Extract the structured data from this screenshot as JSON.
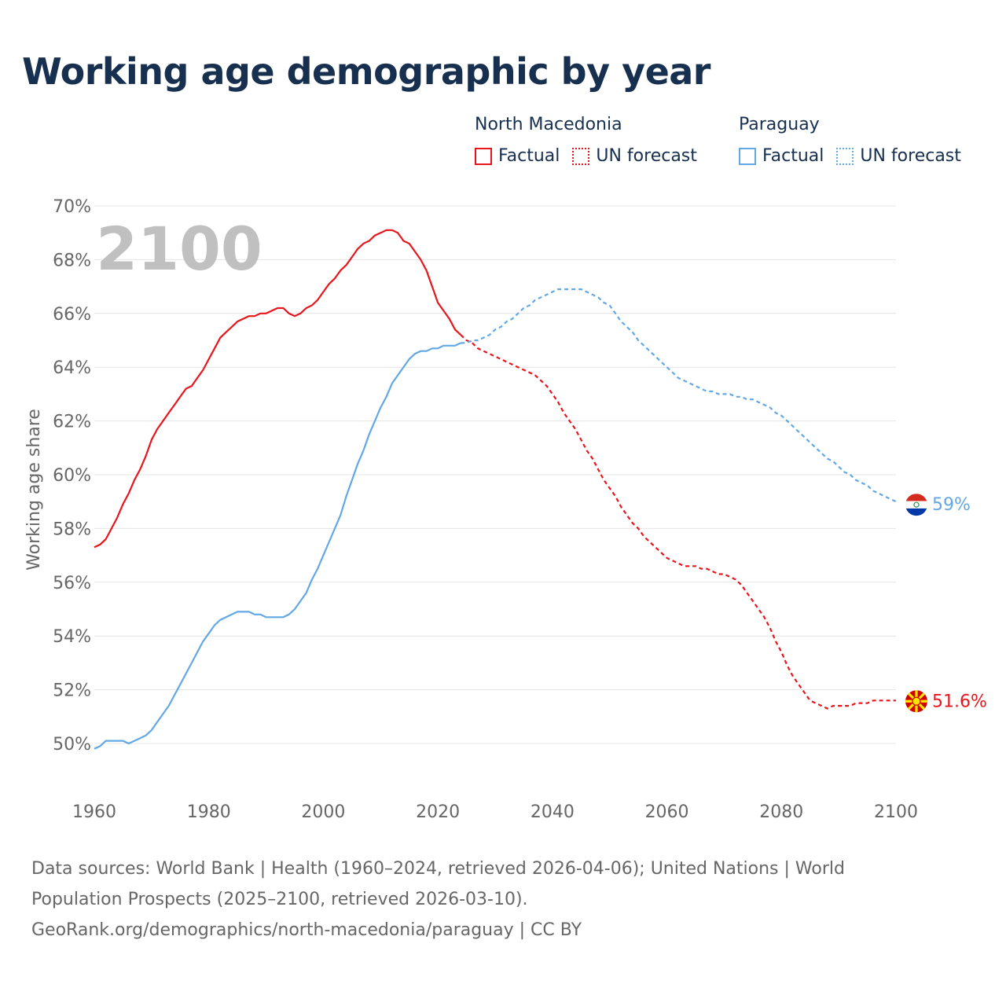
{
  "chart_data": {
    "type": "line",
    "title": "Working age demographic by year",
    "ylabel": "Working age share",
    "xlabel": "",
    "xlim": [
      1960,
      2100
    ],
    "ylim": [
      49,
      70
    ],
    "x_ticks": [
      1960,
      1980,
      2000,
      2020,
      2040,
      2060,
      2080,
      2100
    ],
    "y_ticks": [
      50,
      52,
      54,
      56,
      58,
      60,
      62,
      64,
      66,
      68,
      70
    ],
    "y_tick_labels": [
      "50%",
      "52%",
      "54%",
      "56%",
      "58%",
      "60%",
      "62%",
      "64%",
      "66%",
      "68%",
      "70%"
    ],
    "year_watermark": "2100",
    "factual_end_year": 2024,
    "legend": {
      "factual_label": "Factual",
      "forecast_label": "UN forecast"
    },
    "series": [
      {
        "name": "North Macedonia",
        "color": "#e8151c",
        "end_label": "51.6%",
        "points": [
          [
            1960,
            57.3
          ],
          [
            1961,
            57.4
          ],
          [
            1962,
            57.6
          ],
          [
            1963,
            58.0
          ],
          [
            1964,
            58.4
          ],
          [
            1965,
            58.9
          ],
          [
            1966,
            59.3
          ],
          [
            1967,
            59.8
          ],
          [
            1968,
            60.2
          ],
          [
            1969,
            60.7
          ],
          [
            1970,
            61.3
          ],
          [
            1971,
            61.7
          ],
          [
            1972,
            62.0
          ],
          [
            1973,
            62.3
          ],
          [
            1974,
            62.6
          ],
          [
            1975,
            62.9
          ],
          [
            1976,
            63.2
          ],
          [
            1977,
            63.3
          ],
          [
            1978,
            63.6
          ],
          [
            1979,
            63.9
          ],
          [
            1980,
            64.3
          ],
          [
            1981,
            64.7
          ],
          [
            1982,
            65.1
          ],
          [
            1983,
            65.3
          ],
          [
            1984,
            65.5
          ],
          [
            1985,
            65.7
          ],
          [
            1986,
            65.8
          ],
          [
            1987,
            65.9
          ],
          [
            1988,
            65.9
          ],
          [
            1989,
            66.0
          ],
          [
            1990,
            66.0
          ],
          [
            1991,
            66.1
          ],
          [
            1992,
            66.2
          ],
          [
            1993,
            66.2
          ],
          [
            1994,
            66.0
          ],
          [
            1995,
            65.9
          ],
          [
            1996,
            66.0
          ],
          [
            1997,
            66.2
          ],
          [
            1998,
            66.3
          ],
          [
            1999,
            66.5
          ],
          [
            2000,
            66.8
          ],
          [
            2001,
            67.1
          ],
          [
            2002,
            67.3
          ],
          [
            2003,
            67.6
          ],
          [
            2004,
            67.8
          ],
          [
            2005,
            68.1
          ],
          [
            2006,
            68.4
          ],
          [
            2007,
            68.6
          ],
          [
            2008,
            68.7
          ],
          [
            2009,
            68.9
          ],
          [
            2010,
            69.0
          ],
          [
            2011,
            69.1
          ],
          [
            2012,
            69.1
          ],
          [
            2013,
            69.0
          ],
          [
            2014,
            68.7
          ],
          [
            2015,
            68.6
          ],
          [
            2016,
            68.3
          ],
          [
            2017,
            68.0
          ],
          [
            2018,
            67.6
          ],
          [
            2019,
            67.0
          ],
          [
            2020,
            66.4
          ],
          [
            2021,
            66.1
          ],
          [
            2022,
            65.8
          ],
          [
            2023,
            65.4
          ],
          [
            2024,
            65.2
          ],
          [
            2025,
            65.0
          ],
          [
            2026,
            64.9
          ],
          [
            2027,
            64.7
          ],
          [
            2028,
            64.6
          ],
          [
            2029,
            64.5
          ],
          [
            2030,
            64.4
          ],
          [
            2031,
            64.3
          ],
          [
            2032,
            64.2
          ],
          [
            2033,
            64.1
          ],
          [
            2034,
            64.0
          ],
          [
            2035,
            63.9
          ],
          [
            2036,
            63.8
          ],
          [
            2037,
            63.7
          ],
          [
            2038,
            63.5
          ],
          [
            2039,
            63.3
          ],
          [
            2040,
            63.0
          ],
          [
            2041,
            62.7
          ],
          [
            2042,
            62.3
          ],
          [
            2043,
            62.0
          ],
          [
            2044,
            61.7
          ],
          [
            2045,
            61.3
          ],
          [
            2046,
            60.9
          ],
          [
            2047,
            60.6
          ],
          [
            2048,
            60.2
          ],
          [
            2049,
            59.8
          ],
          [
            2050,
            59.5
          ],
          [
            2051,
            59.2
          ],
          [
            2052,
            58.8
          ],
          [
            2053,
            58.5
          ],
          [
            2054,
            58.2
          ],
          [
            2055,
            58.0
          ],
          [
            2056,
            57.7
          ],
          [
            2057,
            57.5
          ],
          [
            2058,
            57.3
          ],
          [
            2059,
            57.1
          ],
          [
            2060,
            56.9
          ],
          [
            2061,
            56.8
          ],
          [
            2062,
            56.7
          ],
          [
            2063,
            56.6
          ],
          [
            2064,
            56.6
          ],
          [
            2065,
            56.6
          ],
          [
            2066,
            56.5
          ],
          [
            2067,
            56.5
          ],
          [
            2068,
            56.4
          ],
          [
            2069,
            56.3
          ],
          [
            2070,
            56.3
          ],
          [
            2071,
            56.2
          ],
          [
            2072,
            56.1
          ],
          [
            2073,
            55.9
          ],
          [
            2074,
            55.6
          ],
          [
            2075,
            55.3
          ],
          [
            2076,
            55.0
          ],
          [
            2077,
            54.7
          ],
          [
            2078,
            54.3
          ],
          [
            2079,
            53.8
          ],
          [
            2080,
            53.4
          ],
          [
            2081,
            52.9
          ],
          [
            2082,
            52.5
          ],
          [
            2083,
            52.2
          ],
          [
            2084,
            51.9
          ],
          [
            2085,
            51.6
          ],
          [
            2086,
            51.5
          ],
          [
            2087,
            51.4
          ],
          [
            2088,
            51.3
          ],
          [
            2089,
            51.4
          ],
          [
            2090,
            51.4
          ],
          [
            2091,
            51.4
          ],
          [
            2092,
            51.4
          ],
          [
            2093,
            51.5
          ],
          [
            2094,
            51.5
          ],
          [
            2095,
            51.5
          ],
          [
            2096,
            51.6
          ],
          [
            2097,
            51.6
          ],
          [
            2098,
            51.6
          ],
          [
            2099,
            51.6
          ],
          [
            2100,
            51.6
          ]
        ]
      },
      {
        "name": "Paraguay",
        "color": "#62a8e5",
        "end_label": "59%",
        "points": [
          [
            1960,
            49.8
          ],
          [
            1961,
            49.9
          ],
          [
            1962,
            50.1
          ],
          [
            1963,
            50.1
          ],
          [
            1964,
            50.1
          ],
          [
            1965,
            50.1
          ],
          [
            1966,
            50.0
          ],
          [
            1967,
            50.1
          ],
          [
            1968,
            50.2
          ],
          [
            1969,
            50.3
          ],
          [
            1970,
            50.5
          ],
          [
            1971,
            50.8
          ],
          [
            1972,
            51.1
          ],
          [
            1973,
            51.4
          ],
          [
            1974,
            51.8
          ],
          [
            1975,
            52.2
          ],
          [
            1976,
            52.6
          ],
          [
            1977,
            53.0
          ],
          [
            1978,
            53.4
          ],
          [
            1979,
            53.8
          ],
          [
            1980,
            54.1
          ],
          [
            1981,
            54.4
          ],
          [
            1982,
            54.6
          ],
          [
            1983,
            54.7
          ],
          [
            1984,
            54.8
          ],
          [
            1985,
            54.9
          ],
          [
            1986,
            54.9
          ],
          [
            1987,
            54.9
          ],
          [
            1988,
            54.8
          ],
          [
            1989,
            54.8
          ],
          [
            1990,
            54.7
          ],
          [
            1991,
            54.7
          ],
          [
            1992,
            54.7
          ],
          [
            1993,
            54.7
          ],
          [
            1994,
            54.8
          ],
          [
            1995,
            55.0
          ],
          [
            1996,
            55.3
          ],
          [
            1997,
            55.6
          ],
          [
            1998,
            56.1
          ],
          [
            1999,
            56.5
          ],
          [
            2000,
            57.0
          ],
          [
            2001,
            57.5
          ],
          [
            2002,
            58.0
          ],
          [
            2003,
            58.5
          ],
          [
            2004,
            59.2
          ],
          [
            2005,
            59.8
          ],
          [
            2006,
            60.4
          ],
          [
            2007,
            60.9
          ],
          [
            2008,
            61.5
          ],
          [
            2009,
            62.0
          ],
          [
            2010,
            62.5
          ],
          [
            2011,
            62.9
          ],
          [
            2012,
            63.4
          ],
          [
            2013,
            63.7
          ],
          [
            2014,
            64.0
          ],
          [
            2015,
            64.3
          ],
          [
            2016,
            64.5
          ],
          [
            2017,
            64.6
          ],
          [
            2018,
            64.6
          ],
          [
            2019,
            64.7
          ],
          [
            2020,
            64.7
          ],
          [
            2021,
            64.8
          ],
          [
            2022,
            64.8
          ],
          [
            2023,
            64.8
          ],
          [
            2024,
            64.9
          ],
          [
            2025,
            64.9
          ],
          [
            2026,
            65.0
          ],
          [
            2027,
            65.0
          ],
          [
            2028,
            65.1
          ],
          [
            2029,
            65.2
          ],
          [
            2030,
            65.4
          ],
          [
            2031,
            65.5
          ],
          [
            2032,
            65.7
          ],
          [
            2033,
            65.8
          ],
          [
            2034,
            66.0
          ],
          [
            2035,
            66.2
          ],
          [
            2036,
            66.3
          ],
          [
            2037,
            66.5
          ],
          [
            2038,
            66.6
          ],
          [
            2039,
            66.7
          ],
          [
            2040,
            66.8
          ],
          [
            2041,
            66.9
          ],
          [
            2042,
            66.9
          ],
          [
            2043,
            66.9
          ],
          [
            2044,
            66.9
          ],
          [
            2045,
            66.9
          ],
          [
            2046,
            66.8
          ],
          [
            2047,
            66.7
          ],
          [
            2048,
            66.6
          ],
          [
            2049,
            66.4
          ],
          [
            2050,
            66.3
          ],
          [
            2051,
            66.0
          ],
          [
            2052,
            65.7
          ],
          [
            2053,
            65.5
          ],
          [
            2054,
            65.3
          ],
          [
            2055,
            65.0
          ],
          [
            2056,
            64.8
          ],
          [
            2057,
            64.6
          ],
          [
            2058,
            64.4
          ],
          [
            2059,
            64.2
          ],
          [
            2060,
            64.0
          ],
          [
            2061,
            63.8
          ],
          [
            2062,
            63.6
          ],
          [
            2063,
            63.5
          ],
          [
            2064,
            63.4
          ],
          [
            2065,
            63.3
          ],
          [
            2066,
            63.2
          ],
          [
            2067,
            63.1
          ],
          [
            2068,
            63.1
          ],
          [
            2069,
            63.0
          ],
          [
            2070,
            63.0
          ],
          [
            2071,
            63.0
          ],
          [
            2072,
            62.9
          ],
          [
            2073,
            62.9
          ],
          [
            2074,
            62.8
          ],
          [
            2075,
            62.8
          ],
          [
            2076,
            62.7
          ],
          [
            2077,
            62.6
          ],
          [
            2078,
            62.5
          ],
          [
            2079,
            62.3
          ],
          [
            2080,
            62.2
          ],
          [
            2081,
            62.0
          ],
          [
            2082,
            61.8
          ],
          [
            2083,
            61.6
          ],
          [
            2084,
            61.4
          ],
          [
            2085,
            61.2
          ],
          [
            2086,
            61.0
          ],
          [
            2087,
            60.8
          ],
          [
            2088,
            60.6
          ],
          [
            2089,
            60.5
          ],
          [
            2090,
            60.3
          ],
          [
            2091,
            60.1
          ],
          [
            2092,
            60.0
          ],
          [
            2093,
            59.8
          ],
          [
            2094,
            59.7
          ],
          [
            2095,
            59.6
          ],
          [
            2096,
            59.4
          ],
          [
            2097,
            59.3
          ],
          [
            2098,
            59.2
          ],
          [
            2099,
            59.1
          ],
          [
            2100,
            59.0
          ]
        ]
      }
    ],
    "source_lines": [
      "Data sources: World Bank | Health (1960–2024, retrieved 2026-04-06); United Nations | World",
      "Population Prospects (2025–2100, retrieved 2026-03-10).",
      "GeoRank.org/demographics/north-macedonia/paraguay | CC BY"
    ]
  }
}
